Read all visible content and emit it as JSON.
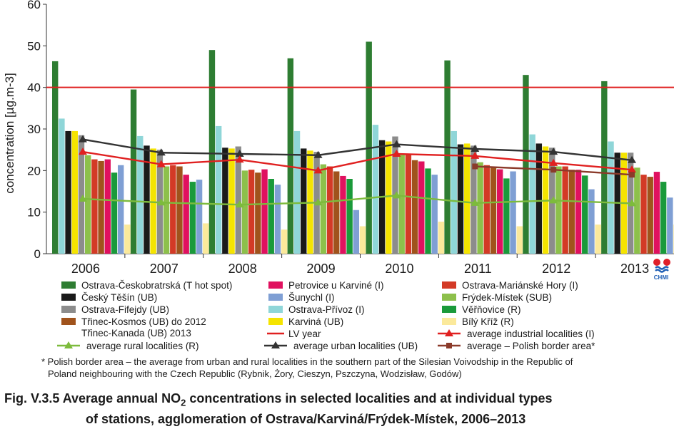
{
  "chart_data": {
    "type": "bar",
    "categories": [
      "2006",
      "2007",
      "2008",
      "2009",
      "2010",
      "2011",
      "2012",
      "2013"
    ],
    "ylabel": "concentration [µg.m-3]",
    "ylim": [
      0,
      60
    ],
    "yticks": [
      0,
      10,
      20,
      30,
      40,
      50,
      60
    ],
    "grid": false,
    "legend_position": "bottom",
    "limit_line": {
      "name": "LV year",
      "value": 40,
      "color": "#e02020"
    },
    "series": [
      {
        "name": "Ostrava-Českobratrská (T hot spot)",
        "color": "#2e7d32",
        "values": [
          46.3,
          39.5,
          49,
          47,
          51,
          46.5,
          43,
          41.5
        ]
      },
      {
        "name": "Ostrava-Přívoz (I)",
        "color": "#8fd6d8",
        "values": [
          32.5,
          28.3,
          30.7,
          29.5,
          31,
          29.5,
          28.7,
          27
        ]
      },
      {
        "name": "Český Těšín (UB)",
        "color": "#1a1a1a",
        "values": [
          29.5,
          26,
          25.5,
          25.3,
          27.3,
          26.3,
          26.5,
          24.3
        ]
      },
      {
        "name": "Karviná (UB)",
        "color": "#f5e400",
        "values": [
          29.5,
          25.3,
          25.3,
          24.8,
          27,
          26.5,
          25.8,
          24.3
        ]
      },
      {
        "name": "Ostrava-Fifejdy (UB)",
        "color": "#8c8c8c",
        "values": [
          28.5,
          25,
          25.8,
          24.5,
          28.2,
          26,
          25.5,
          24.3
        ]
      },
      {
        "name": "Frýdek-Místek (SUB)",
        "color": "#8dc04b",
        "values": [
          23.7,
          21,
          20,
          21.5,
          23.8,
          22,
          21,
          20.7
        ]
      },
      {
        "name": "Ostrava-Mariánské Hory (I)",
        "color": "#d33a26",
        "values": [
          22.7,
          21.3,
          20.2,
          21,
          23.8,
          21.3,
          21,
          19
        ]
      },
      {
        "name": "Třinec-Kosmos (UB) do 2012 Třinec-Kanada (UB) 2013",
        "color": "#a0531c",
        "values": [
          22.3,
          21,
          19.5,
          19.8,
          22.5,
          20.8,
          20.2,
          18.5
        ]
      },
      {
        "name": "Petrovice u Karviné (I)",
        "color": "#e0115f",
        "values": [
          22.7,
          19,
          20.3,
          18.7,
          22.2,
          20.3,
          20.2,
          19.7
        ]
      },
      {
        "name": "Věřňovice (R)",
        "color": "#1a9a3a",
        "values": [
          19.5,
          17.3,
          18,
          18,
          20.5,
          18.1,
          18.8,
          17.3
        ]
      },
      {
        "name": "Šunychl (I)",
        "color": "#7f9fd4",
        "values": [
          21.3,
          17.8,
          16.6,
          10.5,
          19,
          19.8,
          15.5,
          13.5
        ]
      },
      {
        "name": "Bílý Kříž (R)",
        "color": "#fbe99b",
        "values": [
          7,
          7.3,
          5.8,
          6.6,
          7.7,
          6.6,
          7,
          7
        ]
      }
    ],
    "line_series": [
      {
        "name": "average urban localities (UB)",
        "color": "#333333",
        "marker": "triangle",
        "values": [
          27.5,
          24.3,
          24,
          23.7,
          26.3,
          25.2,
          24.5,
          22.5
        ]
      },
      {
        "name": "average industrial localities (I)",
        "color": "#e02020",
        "marker": "triangle",
        "values": [
          24.5,
          21.5,
          22.6,
          20,
          24,
          23.5,
          21.8,
          20.2
        ]
      },
      {
        "name": "average – Polish border area*",
        "color": "#8b3a2a",
        "marker": "square",
        "values": [
          null,
          null,
          null,
          null,
          null,
          21,
          20.2,
          19
        ]
      },
      {
        "name": "average rural localities (R)",
        "color": "#7dbb3c",
        "marker": "triangle",
        "values": [
          13.2,
          12.3,
          11.8,
          12.3,
          14,
          12.2,
          12.8,
          12.1
        ]
      }
    ],
    "legend_layout": [
      [
        "0",
        "8",
        "6"
      ],
      [
        "2",
        "10",
        "5"
      ],
      [
        "4",
        "1",
        "9"
      ],
      [
        "7",
        "3",
        "11"
      ],
      [
        "",
        "limit",
        "L1"
      ],
      [
        "L3",
        "L0",
        "L2"
      ]
    ]
  },
  "footnote": {
    "line1": "* Polish border area – the average from urban and rural localities in the southern part of the Silesian Voivodship in the Republic of",
    "line2": "Poland neighbouring with the Czech Republic (Rybnik, Żory, Cieszyn, Pszczyna, Wodzisław, Godów)"
  },
  "caption": {
    "line1_before": "Fig. V.3.5  Average annual NO",
    "line1_sub": "2",
    "line1_after": " concentrations in selected localities and at individual types",
    "line2": "of stations, agglomeration of Ostrava/Karviná/Frýdek-Místek, 2006–2013"
  },
  "logo": {
    "text": "CHMI",
    "color_red": "#e0202a",
    "color_blue": "#1f5fb5"
  }
}
